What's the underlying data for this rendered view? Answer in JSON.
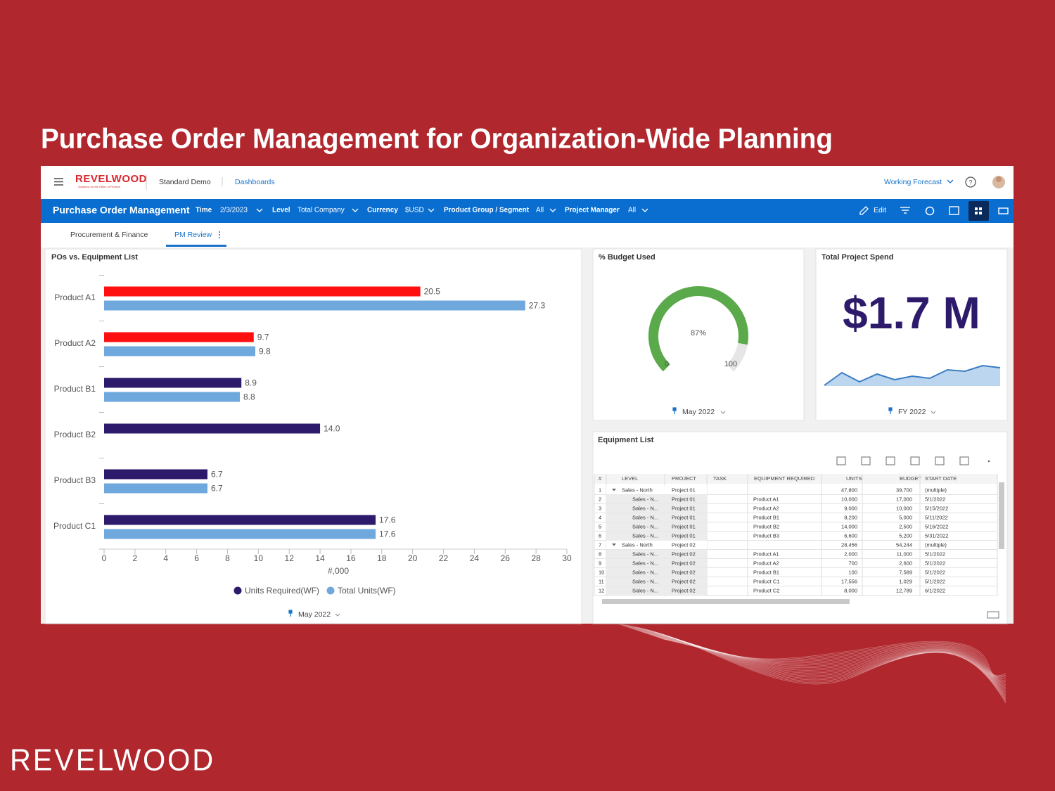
{
  "slide_title": "Purchase Order Management for Organization-Wide Planning",
  "header": {
    "logo": "REVELWOOD",
    "logo_tagline": "Solutions for the Office of Finance",
    "app": "Standard Demo",
    "breadcrumb": "Dashboards",
    "scenario": "Working Forecast"
  },
  "toolbar": {
    "title": "Purchase Order Management",
    "filters": [
      {
        "label": "Time",
        "value": "2/3/2023"
      },
      {
        "label": "Level",
        "value": "Total Company"
      },
      {
        "label": "Currency",
        "value": "$USD"
      },
      {
        "label": "Product Group / Segment",
        "value": "All"
      },
      {
        "label": "Project Manager",
        "value": "All"
      }
    ],
    "edit": "Edit"
  },
  "tabs": [
    "Procurement & Finance",
    "PM Review"
  ],
  "chart_data": {
    "type": "bar",
    "orientation": "horizontal",
    "title": "POs vs. Equipment List",
    "categories": [
      "Product A1",
      "Product A2",
      "Product B1",
      "Product B2",
      "Product B3",
      "Product C1"
    ],
    "series": [
      {
        "name": "Units Required(WF)",
        "color": "#2d1a6b",
        "point_colors": [
          "#ff1010",
          "#ff1010",
          "#2d1a6b",
          "#2d1a6b",
          "#2d1a6b",
          "#2d1a6b"
        ],
        "values": [
          20.5,
          9.7,
          8.9,
          14.0,
          6.7,
          17.6
        ],
        "value_labels": [
          "20.5",
          "9.7",
          "8.9",
          "14.0",
          "6.7",
          "17.6"
        ]
      },
      {
        "name": "Total Units(WF)",
        "color": "#6fa8dc",
        "values": [
          27.3,
          9.8,
          8.8,
          null,
          6.7,
          17.6
        ],
        "value_labels": [
          "27.3",
          "9.8",
          "8.8",
          null,
          "6.7",
          "17.6"
        ]
      }
    ],
    "xlim": [
      0,
      30
    ],
    "xticks": [
      0,
      2,
      4,
      6,
      8,
      10,
      12,
      14,
      16,
      18,
      20,
      22,
      24,
      26,
      28,
      30
    ],
    "xlabel": "#,000",
    "footer": "May 2022"
  },
  "gauge": {
    "title": "% Budget Used",
    "value": 87,
    "value_label": "87%",
    "min": 0,
    "max": 100,
    "color": "#5aa94a",
    "footer": "May 2022"
  },
  "spend": {
    "title": "Total Project Spend",
    "value_label": "$1.7 M",
    "sparkline": [
      0,
      18,
      5,
      16,
      8,
      13,
      10,
      22,
      20,
      28,
      25
    ],
    "footer": "FY 2022"
  },
  "equipment_list": {
    "title": "Equipment List",
    "columns": [
      "#",
      "LEVEL",
      "PROJECT",
      "TASK",
      "EQUIPMENT REQUIRED",
      "UNITS",
      "BUDGET",
      "START DATE"
    ],
    "rows": [
      [
        "1",
        "Sales - North",
        "Project 01",
        null,
        null,
        "47,800",
        "39,700",
        "(multiple)"
      ],
      [
        "2",
        "Sales - N...",
        "Project 01",
        null,
        "Product A1",
        "10,000",
        "17,000",
        "5/1/2022"
      ],
      [
        "3",
        "Sales - N...",
        "Project 01",
        null,
        "Product A2",
        "9,000",
        "10,000",
        "5/15/2022"
      ],
      [
        "4",
        "Sales - N...",
        "Project 01",
        null,
        "Product B1",
        "8,200",
        "5,000",
        "5/11/2022"
      ],
      [
        "5",
        "Sales - N...",
        "Project 01",
        null,
        "Product B2",
        "14,000",
        "2,500",
        "5/16/2022"
      ],
      [
        "6",
        "Sales - N...",
        "Project 01",
        null,
        "Product B3",
        "6,600",
        "5,200",
        "5/31/2022"
      ],
      [
        "7",
        "Sales - North",
        "Project 02",
        null,
        null,
        "28,456",
        "54,244",
        "(multiple)"
      ],
      [
        "8",
        "Sales - N...",
        "Project 02",
        null,
        "Product A1",
        "2,000",
        "11,000",
        "5/1/2022"
      ],
      [
        "9",
        "Sales - N...",
        "Project 02",
        null,
        "Product A2",
        "700",
        "2,600",
        "5/1/2022"
      ],
      [
        "10",
        "Sales - N...",
        "Project 02",
        null,
        "Product B1",
        "100",
        "7,589",
        "5/1/2022"
      ],
      [
        "11",
        "Sales - N...",
        "Project 02",
        null,
        "Product C1",
        "17,556",
        "1,029",
        "5/1/2022"
      ],
      [
        "12",
        "Sales - N...",
        "Project 02",
        null,
        "Product C2",
        "8,000",
        "12,789",
        "6/1/2022"
      ]
    ]
  },
  "footer_logo": "REVELWOOD"
}
